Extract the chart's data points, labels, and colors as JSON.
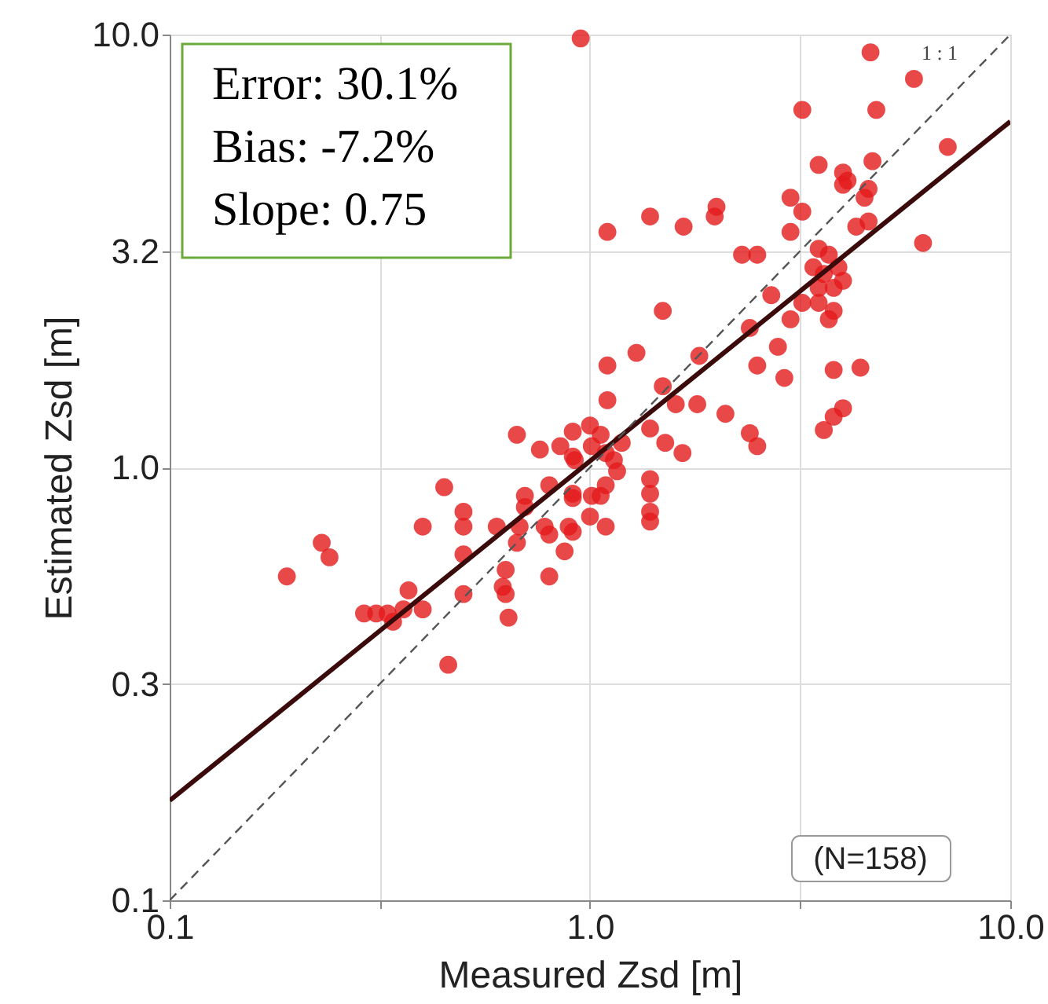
{
  "chart_data": {
    "type": "scatter",
    "xlabel": "Measured Zsd [m]",
    "ylabel": "Estimated Zsd [m]",
    "log": "xy",
    "grid": true,
    "legend": false,
    "xlim": [
      0.1,
      10
    ],
    "ylim": [
      0.1,
      10
    ],
    "xticks": [
      0.1,
      {
        "value": 0.316,
        "label": null
      },
      {
        "value": 1,
        "label": "1.0"
      },
      {
        "value": 3.16,
        "label": null
      },
      {
        "value": 10,
        "label": "10.0"
      }
    ],
    "yticks": [
      0.1,
      {
        "value": 0.316,
        "label": "0.3"
      },
      {
        "value": 1,
        "label": "1.0"
      },
      {
        "value": 3.16,
        "label": "3.2"
      },
      {
        "value": 10,
        "label": "10.0"
      }
    ],
    "annotations": [
      "Error: 30.1%",
      "Bias: -7.2%",
      "Slope: 0.75",
      "(N=158)"
    ],
    "series": [
      {
        "type": "scatter",
        "color": "#e31a1c",
        "marker": "circle",
        "x": [
          0.95,
          4.65,
          5.9,
          3.2,
          4.8,
          7.1,
          3.5,
          4.0,
          4.1,
          4.0,
          4.7,
          4.6,
          4.5,
          3.0,
          3.2,
          2.0,
          1.98,
          1.39,
          1.67,
          1.1,
          3.0,
          4.3,
          4.6,
          6.2,
          2.3,
          2.5,
          3.5,
          3.7,
          3.4,
          3.6,
          3.9,
          3.5,
          3.8,
          4.0,
          3.2,
          3.5,
          3.8,
          3.7,
          3.0,
          2.7,
          1.49,
          2.4,
          2.8,
          1.29,
          1.82,
          1.1,
          2.5,
          3.8,
          4.4,
          2.9,
          1.49,
          1.1,
          1.6,
          1.8,
          2.1,
          4.0,
          3.8,
          3.6,
          2.4,
          2.5,
          0.67,
          0.76,
          0.85,
          0.91,
          1.0,
          1.06,
          1.19,
          1.39,
          1.51,
          1.66,
          0.91,
          1.14,
          0.92,
          1.01,
          1.09,
          0.45,
          1.16,
          1.39,
          1.39,
          1.09,
          1.01,
          1.06,
          0.91,
          0.91,
          0.8,
          0.7,
          0.7,
          0.5,
          0.5,
          0.4,
          0.6,
          0.68,
          0.78,
          0.8,
          0.89,
          0.91,
          1.0,
          1.09,
          1.39,
          1.39,
          0.67,
          0.87,
          0.5,
          0.23,
          0.24,
          0.19,
          0.63,
          0.8,
          0.5,
          0.62,
          0.63,
          0.37,
          0.29,
          0.31,
          0.33,
          0.34,
          0.4,
          0.36,
          0.64,
          0.46
        ],
        "values": [
          9.8,
          9.1,
          7.9,
          6.7,
          6.7,
          5.5,
          5.0,
          4.8,
          4.6,
          4.5,
          5.1,
          4.4,
          4.2,
          4.2,
          3.9,
          4.0,
          3.8,
          3.8,
          3.6,
          3.5,
          3.5,
          3.6,
          3.7,
          3.3,
          3.1,
          3.1,
          3.2,
          3.1,
          2.9,
          2.8,
          2.9,
          2.6,
          2.6,
          2.7,
          2.4,
          2.4,
          2.3,
          2.2,
          2.2,
          2.5,
          2.3,
          2.1,
          1.9,
          1.84,
          1.81,
          1.72,
          1.72,
          1.68,
          1.7,
          1.61,
          1.54,
          1.43,
          1.4,
          1.4,
          1.33,
          1.37,
          1.31,
          1.22,
          1.2,
          1.12,
          1.19,
          1.1,
          1.12,
          1.21,
          1.25,
          1.19,
          1.14,
          1.23,
          1.14,
          1.08,
          1.06,
          1.04,
          1.04,
          1.12,
          1.08,
          0.9,
          0.98,
          0.94,
          0.87,
          0.91,
          0.86,
          0.86,
          0.85,
          0.87,
          0.91,
          0.86,
          0.81,
          0.79,
          0.73,
          0.73,
          0.73,
          0.73,
          0.73,
          0.7,
          0.73,
          0.71,
          0.77,
          0.73,
          0.79,
          0.75,
          0.67,
          0.64,
          0.63,
          0.67,
          0.62,
          0.56,
          0.58,
          0.56,
          0.51,
          0.53,
          0.51,
          0.52,
          0.46,
          0.46,
          0.46,
          0.44,
          0.47,
          0.47,
          0.45,
          0.35
        ]
      },
      {
        "type": "line",
        "color": "#3b0a0a",
        "line_style": "solid",
        "x": [
          0.1,
          10
        ],
        "values": [
          0.17,
          6.3
        ]
      },
      {
        "type": "line",
        "name": "1 : 1",
        "color": "#555555",
        "line_style": "dashed",
        "x": [
          0.1,
          10
        ],
        "values": [
          0.1,
          10
        ]
      }
    ]
  }
}
